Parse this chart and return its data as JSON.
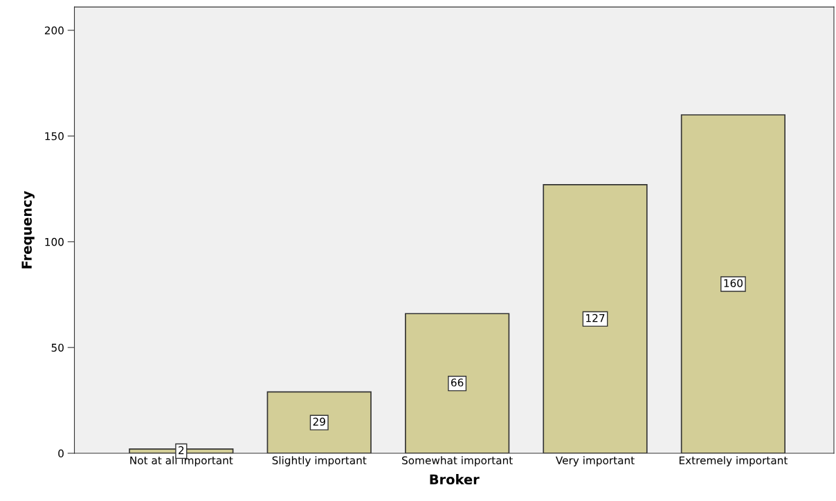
{
  "chart_data": {
    "type": "bar",
    "xlabel": "Broker",
    "ylabel": "Frequency",
    "categories": [
      "Not at all important",
      "Slightly important",
      "Somewhat important",
      "Very important",
      "Extremely important"
    ],
    "values": [
      2,
      29,
      66,
      127,
      160
    ],
    "color": "#d3ce97",
    "ylim": [
      0,
      211
    ],
    "yticks": [
      0,
      50,
      100,
      150,
      200
    ],
    "data_labels": true,
    "grid": false
  }
}
